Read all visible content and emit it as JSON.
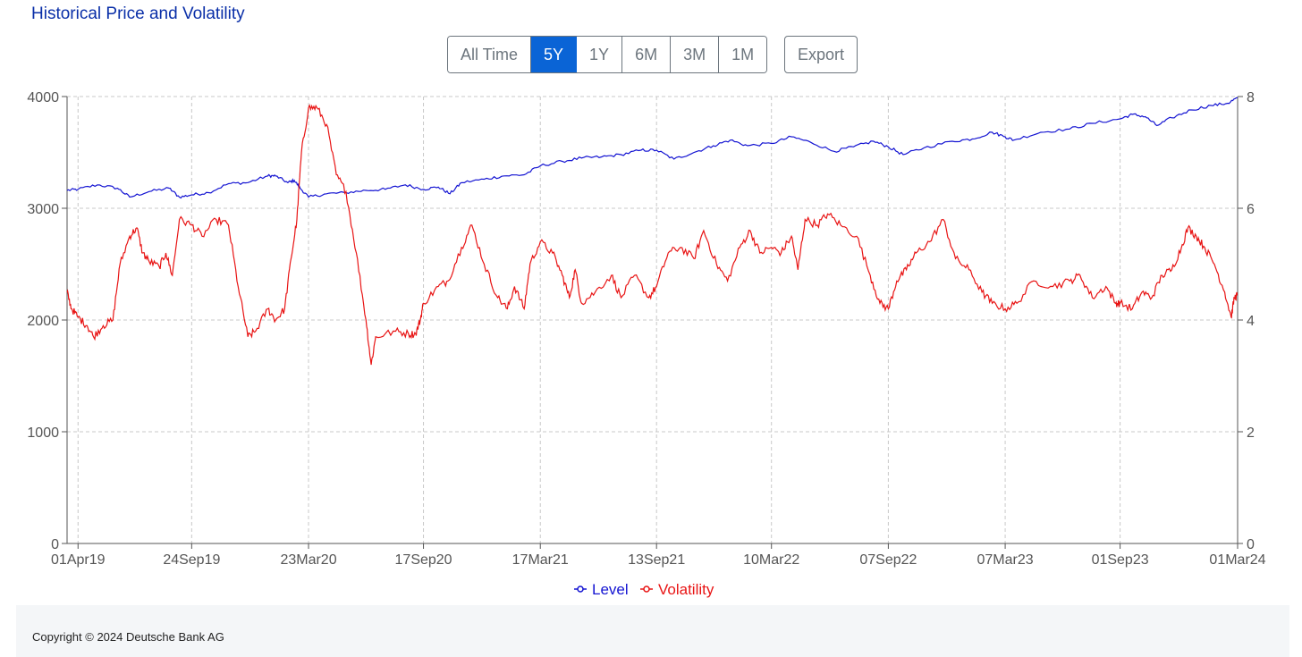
{
  "header": {
    "title": "Historical Price and Volatility"
  },
  "toolbar": {
    "ranges": [
      {
        "label": "All Time",
        "active": false
      },
      {
        "label": "5Y",
        "active": true
      },
      {
        "label": "1Y",
        "active": false
      },
      {
        "label": "6M",
        "active": false
      },
      {
        "label": "3M",
        "active": false
      },
      {
        "label": "1M",
        "active": false
      }
    ],
    "export_label": "Export"
  },
  "chart_data": {
    "type": "line",
    "title": "",
    "x_ticks": [
      "01Apr19",
      "24Sep19",
      "23Mar20",
      "17Sep20",
      "17Mar21",
      "13Sep21",
      "10Mar22",
      "07Sep22",
      "07Mar23",
      "01Sep23",
      "01Mar24"
    ],
    "x_range": [
      "2019-03-15",
      "2024-03-01"
    ],
    "y_left": {
      "range": [
        0,
        4000
      ],
      "ticks": [
        "0",
        "1000",
        "2000",
        "3000",
        "4000"
      ]
    },
    "y_right": {
      "range": [
        0,
        8
      ],
      "ticks": [
        "0",
        "2",
        "4",
        "6",
        "8"
      ]
    },
    "grid": true,
    "legend_position": "bottom",
    "colors": {
      "level": "#1414d2",
      "volatility": "#e81414"
    },
    "series": [
      {
        "name": "Level",
        "axis": "left",
        "color": "#1414d2",
        "points": [
          [
            "2019-03-15",
            3160
          ],
          [
            "2019-04-01",
            3170
          ],
          [
            "2019-05-01",
            3210
          ],
          [
            "2019-06-01",
            3180
          ],
          [
            "2019-06-20",
            3100
          ],
          [
            "2019-07-20",
            3150
          ],
          [
            "2019-08-20",
            3180
          ],
          [
            "2019-09-05",
            3100
          ],
          [
            "2019-09-24",
            3120
          ],
          [
            "2019-10-20",
            3140
          ],
          [
            "2019-11-20",
            3220
          ],
          [
            "2019-12-20",
            3230
          ],
          [
            "2020-01-20",
            3290
          ],
          [
            "2020-02-01",
            3290
          ],
          [
            "2020-02-20",
            3230
          ],
          [
            "2020-03-01",
            3250
          ],
          [
            "2020-03-10",
            3180
          ],
          [
            "2020-03-23",
            3100
          ],
          [
            "2020-04-20",
            3130
          ],
          [
            "2020-05-20",
            3140
          ],
          [
            "2020-06-20",
            3160
          ],
          [
            "2020-07-20",
            3170
          ],
          [
            "2020-08-20",
            3210
          ],
          [
            "2020-09-17",
            3170
          ],
          [
            "2020-10-10",
            3190
          ],
          [
            "2020-10-28",
            3130
          ],
          [
            "2020-11-15",
            3230
          ],
          [
            "2020-12-20",
            3260
          ],
          [
            "2021-01-20",
            3290
          ],
          [
            "2021-02-20",
            3300
          ],
          [
            "2021-03-17",
            3380
          ],
          [
            "2021-04-20",
            3420
          ],
          [
            "2021-05-20",
            3450
          ],
          [
            "2021-06-20",
            3460
          ],
          [
            "2021-07-20",
            3480
          ],
          [
            "2021-08-20",
            3520
          ],
          [
            "2021-09-13",
            3520
          ],
          [
            "2021-10-10",
            3440
          ],
          [
            "2021-11-10",
            3500
          ],
          [
            "2021-12-10",
            3560
          ],
          [
            "2022-01-05",
            3610
          ],
          [
            "2022-02-01",
            3560
          ],
          [
            "2022-03-10",
            3580
          ],
          [
            "2022-04-10",
            3640
          ],
          [
            "2022-05-10",
            3590
          ],
          [
            "2022-06-15",
            3510
          ],
          [
            "2022-07-15",
            3550
          ],
          [
            "2022-08-15",
            3600
          ],
          [
            "2022-09-07",
            3550
          ],
          [
            "2022-09-30",
            3480
          ],
          [
            "2022-11-01",
            3540
          ],
          [
            "2022-12-15",
            3600
          ],
          [
            "2023-01-15",
            3620
          ],
          [
            "2023-02-15",
            3680
          ],
          [
            "2023-03-07",
            3640
          ],
          [
            "2023-03-20",
            3610
          ],
          [
            "2023-05-01",
            3680
          ],
          [
            "2023-06-15",
            3710
          ],
          [
            "2023-07-20",
            3760
          ],
          [
            "2023-09-01",
            3800
          ],
          [
            "2023-09-20",
            3840
          ],
          [
            "2023-10-10",
            3820
          ],
          [
            "2023-10-28",
            3740
          ],
          [
            "2023-11-20",
            3810
          ],
          [
            "2023-12-20",
            3880
          ],
          [
            "2024-01-20",
            3920
          ],
          [
            "2024-02-15",
            3940
          ],
          [
            "2024-03-01",
            3990
          ]
        ]
      },
      {
        "name": "Volatility",
        "axis": "right",
        "color": "#e81414",
        "points": [
          [
            "2019-03-15",
            4.5
          ],
          [
            "2019-03-22",
            4.2
          ],
          [
            "2019-04-01",
            4.05
          ],
          [
            "2019-04-15",
            3.9
          ],
          [
            "2019-04-25",
            3.7
          ],
          [
            "2019-05-10",
            3.9
          ],
          [
            "2019-05-25",
            4.0
          ],
          [
            "2019-06-05",
            5.0
          ],
          [
            "2019-06-20",
            5.5
          ],
          [
            "2019-07-01",
            5.65
          ],
          [
            "2019-07-10",
            5.2
          ],
          [
            "2019-07-20",
            5.05
          ],
          [
            "2019-08-05",
            4.95
          ],
          [
            "2019-08-15",
            5.2
          ],
          [
            "2019-08-25",
            4.8
          ],
          [
            "2019-09-05",
            5.8
          ],
          [
            "2019-09-24",
            5.7
          ],
          [
            "2019-10-10",
            5.5
          ],
          [
            "2019-11-01",
            5.8
          ],
          [
            "2019-11-20",
            5.7
          ],
          [
            "2019-12-05",
            4.6
          ],
          [
            "2019-12-20",
            3.7
          ],
          [
            "2020-01-01",
            3.8
          ],
          [
            "2020-01-20",
            4.2
          ],
          [
            "2020-02-01",
            4.0
          ],
          [
            "2020-02-15",
            4.2
          ],
          [
            "2020-02-25",
            5.1
          ],
          [
            "2020-03-05",
            5.8
          ],
          [
            "2020-03-12",
            7.0
          ],
          [
            "2020-03-23",
            7.8
          ],
          [
            "2020-04-05",
            7.8
          ],
          [
            "2020-04-20",
            7.5
          ],
          [
            "2020-05-05",
            6.6
          ],
          [
            "2020-05-20",
            6.3
          ],
          [
            "2020-06-05",
            5.2
          ],
          [
            "2020-06-20",
            4.0
          ],
          [
            "2020-06-28",
            3.2
          ],
          [
            "2020-07-05",
            3.7
          ],
          [
            "2020-08-05",
            3.8
          ],
          [
            "2020-08-25",
            3.75
          ],
          [
            "2020-09-05",
            3.75
          ],
          [
            "2020-09-12",
            4.0
          ],
          [
            "2020-09-17",
            4.3
          ],
          [
            "2020-10-10",
            4.6
          ],
          [
            "2020-10-25",
            4.7
          ],
          [
            "2020-11-15",
            5.3
          ],
          [
            "2020-12-01",
            5.7
          ],
          [
            "2020-12-20",
            5.0
          ],
          [
            "2021-01-10",
            4.4
          ],
          [
            "2021-01-25",
            4.2
          ],
          [
            "2021-02-05",
            4.6
          ],
          [
            "2021-02-20",
            4.2
          ],
          [
            "2021-03-01",
            5.0
          ],
          [
            "2021-03-17",
            5.4
          ],
          [
            "2021-04-05",
            5.2
          ],
          [
            "2021-04-20",
            4.8
          ],
          [
            "2021-05-01",
            4.4
          ],
          [
            "2021-05-10",
            4.9
          ],
          [
            "2021-05-20",
            4.3
          ],
          [
            "2021-06-10",
            4.5
          ],
          [
            "2021-07-05",
            4.8
          ],
          [
            "2021-07-20",
            4.4
          ],
          [
            "2021-08-10",
            4.8
          ],
          [
            "2021-09-01",
            4.4
          ],
          [
            "2021-09-13",
            4.6
          ],
          [
            "2021-10-01",
            5.2
          ],
          [
            "2021-10-20",
            5.3
          ],
          [
            "2021-11-10",
            5.1
          ],
          [
            "2021-11-25",
            5.6
          ],
          [
            "2021-12-15",
            5.0
          ],
          [
            "2022-01-01",
            4.7
          ],
          [
            "2022-01-20",
            5.3
          ],
          [
            "2022-02-05",
            5.6
          ],
          [
            "2022-02-20",
            5.2
          ],
          [
            "2022-03-10",
            5.3
          ],
          [
            "2022-03-25",
            5.2
          ],
          [
            "2022-04-10",
            5.5
          ],
          [
            "2022-04-20",
            4.9
          ],
          [
            "2022-05-01",
            5.8
          ],
          [
            "2022-05-20",
            5.7
          ],
          [
            "2022-06-05",
            5.9
          ],
          [
            "2022-06-25",
            5.7
          ],
          [
            "2022-07-20",
            5.5
          ],
          [
            "2022-08-10",
            4.8
          ],
          [
            "2022-08-25",
            4.3
          ],
          [
            "2022-09-07",
            4.2
          ],
          [
            "2022-09-20",
            4.7
          ],
          [
            "2022-10-05",
            4.9
          ],
          [
            "2022-10-20",
            5.2
          ],
          [
            "2022-11-10",
            5.4
          ],
          [
            "2022-12-01",
            5.8
          ],
          [
            "2022-12-20",
            5.1
          ],
          [
            "2023-01-10",
            4.9
          ],
          [
            "2023-01-30",
            4.5
          ],
          [
            "2023-02-15",
            4.3
          ],
          [
            "2023-03-07",
            4.2
          ],
          [
            "2023-03-25",
            4.3
          ],
          [
            "2023-04-20",
            4.7
          ],
          [
            "2023-05-20",
            4.6
          ],
          [
            "2023-06-15",
            4.7
          ],
          [
            "2023-07-01",
            4.8
          ],
          [
            "2023-07-20",
            4.4
          ],
          [
            "2023-08-10",
            4.6
          ],
          [
            "2023-08-25",
            4.3
          ],
          [
            "2023-09-01",
            4.3
          ],
          [
            "2023-09-20",
            4.2
          ],
          [
            "2023-10-05",
            4.5
          ],
          [
            "2023-10-20",
            4.4
          ],
          [
            "2023-11-05",
            4.8
          ],
          [
            "2023-11-20",
            4.9
          ],
          [
            "2023-12-05",
            5.3
          ],
          [
            "2023-12-15",
            5.65
          ],
          [
            "2023-12-28",
            5.5
          ],
          [
            "2024-01-10",
            5.3
          ],
          [
            "2024-01-25",
            5.0
          ],
          [
            "2024-02-10",
            4.5
          ],
          [
            "2024-02-20",
            4.05
          ],
          [
            "2024-02-25",
            4.4
          ],
          [
            "2024-03-01",
            4.45
          ]
        ]
      }
    ]
  },
  "footer": {
    "copyright": "Copyright © 2024 Deutsche Bank AG"
  }
}
